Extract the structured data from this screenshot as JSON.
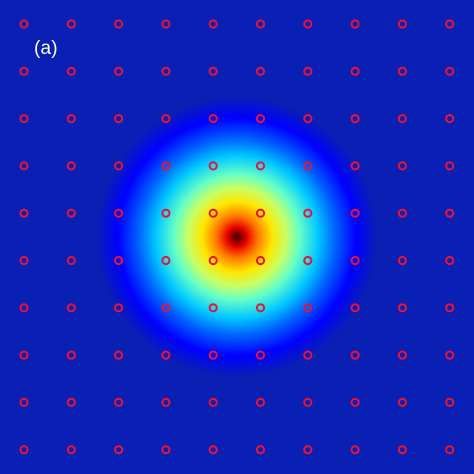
{
  "figure": {
    "panel_label": "(a)"
  },
  "chart_data": {
    "type": "heatmap",
    "title": "",
    "xlabel": "",
    "ylabel": "",
    "colormap": "jet",
    "background_color": "#0a1fb4",
    "grid": false,
    "field": {
      "shape": "radial-gaussian",
      "center": [
        5,
        5.5
      ],
      "peak_value": 1.0,
      "colormap_stops": [
        {
          "value": 0.0,
          "color": "#0a1fb4"
        },
        {
          "value": 0.15,
          "color": "#0000ff"
        },
        {
          "value": 0.3,
          "color": "#0064ff"
        },
        {
          "value": 0.42,
          "color": "#00c8ff"
        },
        {
          "value": 0.55,
          "color": "#64ffc8"
        },
        {
          "value": 0.65,
          "color": "#c8ff64"
        },
        {
          "value": 0.75,
          "color": "#ffe600"
        },
        {
          "value": 0.85,
          "color": "#ff7800"
        },
        {
          "value": 0.93,
          "color": "#e60000"
        },
        {
          "value": 1.0,
          "color": "#3c0000"
        }
      ]
    },
    "markers": {
      "shape": "ring",
      "color": "#e6143c",
      "columns": 10,
      "rows": 10,
      "x": [
        0,
        1,
        2,
        3,
        4,
        5,
        6,
        7,
        8,
        9
      ],
      "y": [
        0,
        1,
        2,
        3,
        4,
        5,
        6,
        7,
        8,
        9
      ]
    }
  }
}
